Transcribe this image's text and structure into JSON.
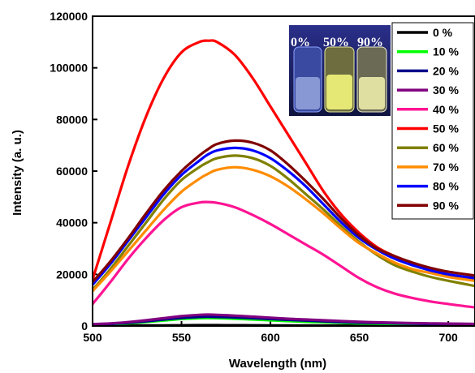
{
  "chart_data": {
    "type": "line",
    "title": "",
    "xlabel": "Wavelength (nm)",
    "ylabel": "Intensity (a. u.)",
    "xlim": [
      500,
      715
    ],
    "ylim": [
      0,
      120000
    ],
    "xticks": [
      500,
      550,
      600,
      650,
      700
    ],
    "yticks": [
      0,
      20000,
      40000,
      60000,
      80000,
      100000,
      120000
    ],
    "grid": false,
    "legend_position": "top-right",
    "x": [
      500,
      510,
      520,
      530,
      540,
      550,
      560,
      565,
      570,
      580,
      590,
      600,
      610,
      620,
      630,
      640,
      650,
      660,
      670,
      680,
      690,
      700,
      715
    ],
    "series": [
      {
        "name": "0 %",
        "color": "#000000",
        "values": [
          100,
          120,
          150,
          180,
          220,
          260,
          300,
          310,
          300,
          280,
          250,
          220,
          190,
          160,
          140,
          120,
          100,
          90,
          80,
          70,
          60,
          50,
          40
        ]
      },
      {
        "name": "10 %",
        "color": "#00ff00",
        "values": [
          500,
          700,
          1000,
          1500,
          2100,
          2700,
          3000,
          3050,
          3000,
          2800,
          2500,
          2200,
          1900,
          1600,
          1400,
          1200,
          1000,
          900,
          800,
          700,
          600,
          500,
          400
        ]
      },
      {
        "name": "20 %",
        "color": "#00008b",
        "values": [
          600,
          800,
          1200,
          1800,
          2500,
          3100,
          3500,
          3550,
          3500,
          3300,
          3000,
          2700,
          2400,
          2100,
          1800,
          1500,
          1300,
          1150,
          1000,
          900,
          800,
          700,
          600
        ]
      },
      {
        "name": "30 %",
        "color": "#800080",
        "values": [
          700,
          1000,
          1500,
          2200,
          3000,
          3800,
          4300,
          4400,
          4300,
          4000,
          3600,
          3200,
          2800,
          2500,
          2200,
          1900,
          1600,
          1400,
          1250,
          1100,
          1000,
          900,
          800
        ]
      },
      {
        "name": "40 %",
        "color": "#ff1493",
        "values": [
          8500,
          17000,
          26000,
          34000,
          41000,
          46000,
          47800,
          48000,
          47700,
          46000,
          43000,
          39500,
          35500,
          31500,
          27500,
          23000,
          18500,
          15000,
          12500,
          10800,
          9500,
          8500,
          7200
        ]
      },
      {
        "name": "50 %",
        "color": "#ff0000",
        "values": [
          18000,
          40000,
          62000,
          81000,
          96000,
          106000,
          110000,
          110500,
          110000,
          105000,
          96000,
          85000,
          74000,
          63000,
          52000,
          43000,
          36000,
          30500,
          27000,
          24000,
          21500,
          19500,
          18000
        ]
      },
      {
        "name": "60 %",
        "color": "#808000",
        "values": [
          14000,
          22000,
          31000,
          40000,
          49000,
          56500,
          61500,
          63500,
          65000,
          66000,
          65000,
          62000,
          57000,
          51000,
          45000,
          38500,
          32500,
          27500,
          23500,
          21000,
          19000,
          17500,
          15500
        ]
      },
      {
        "name": "70 %",
        "color": "#ff8c00",
        "values": [
          13500,
          21000,
          29000,
          37000,
          45000,
          52000,
          57000,
          59000,
          60500,
          61500,
          60500,
          58000,
          54000,
          49000,
          43500,
          37500,
          32000,
          28000,
          24500,
          22000,
          20500,
          19000,
          17500
        ]
      },
      {
        "name": "80 %",
        "color": "#0000ff",
        "values": [
          16000,
          24000,
          33000,
          42000,
          51000,
          58500,
          64000,
          66500,
          68000,
          69000,
          68000,
          65000,
          60000,
          54000,
          47000,
          40000,
          34000,
          29500,
          26000,
          23500,
          21500,
          20000,
          18500
        ]
      },
      {
        "name": "90 %",
        "color": "#800000",
        "values": [
          17000,
          25000,
          34000,
          43500,
          52500,
          60000,
          66000,
          68500,
          70500,
          71800,
          71000,
          68000,
          62500,
          56000,
          49000,
          41500,
          35000,
          30000,
          27000,
          24500,
          22500,
          21000,
          19500
        ]
      }
    ],
    "inset": {
      "labels": [
        "0%",
        "50%",
        "90%"
      ],
      "colors": {
        "background": "#1a1f6e",
        "vial_0": "#c8d8ff",
        "vial_50": "#f2f57a",
        "vial_90": "#f5f3b0"
      }
    }
  }
}
